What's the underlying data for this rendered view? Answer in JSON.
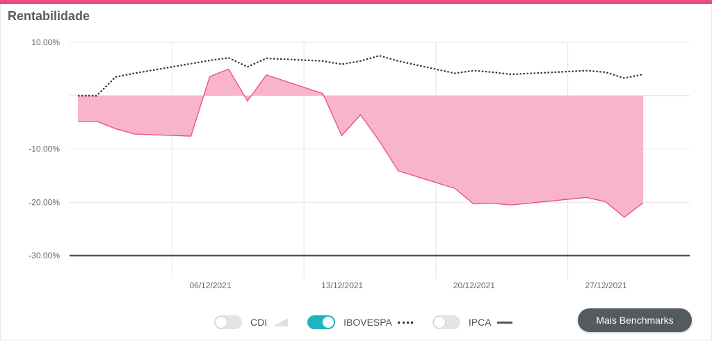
{
  "title": "Rentabilidade",
  "colors": {
    "accent": "#ea4c84",
    "area": "#f8b4cb",
    "toggle_on": "#1fb4c2",
    "benchmark": "#333333"
  },
  "legend": [
    {
      "label": "CDI",
      "on": false,
      "swatch": "area"
    },
    {
      "label": "IBOVESPA",
      "on": true,
      "swatch": "dotted-line"
    },
    {
      "label": "IPCA",
      "on": false,
      "swatch": "solid-line"
    }
  ],
  "more_button": "Mais Benchmarks",
  "chart_data": {
    "type": "area",
    "ylim": [
      -30,
      10
    ],
    "y_ticks": [
      "10.00%",
      "",
      "-10.00%",
      "-20.00%",
      "-30.00%"
    ],
    "y_tick_values": [
      10,
      0,
      -10,
      -20,
      -30
    ],
    "x_ticks": [
      "06/12/2021",
      "13/12/2021",
      "20/12/2021",
      "27/12/2021"
    ],
    "x_tick_days": [
      6,
      13,
      20,
      27
    ],
    "grid": true,
    "series": [
      {
        "style": "area",
        "x": [
          "2021-12-01",
          "2021-12-02",
          "2021-12-03",
          "2021-12-04",
          "2021-12-07",
          "2021-12-08",
          "2021-12-09",
          "2021-12-10",
          "2021-12-11",
          "2021-12-14",
          "2021-12-15",
          "2021-12-16",
          "2021-12-17",
          "2021-12-18",
          "2021-12-21",
          "2021-12-22",
          "2021-12-23",
          "2021-12-24",
          "2021-12-28",
          "2021-12-29",
          "2021-12-30",
          "2021-12-31"
        ],
        "values": [
          -4.8,
          -4.8,
          -6.2,
          -7.2,
          -7.6,
          3.6,
          5.0,
          -1.0,
          3.9,
          0.4,
          -7.5,
          -3.6,
          -8.5,
          -14.1,
          -17.4,
          -20.3,
          -20.2,
          -20.5,
          -19.1,
          -19.9,
          -22.8,
          -20.1
        ]
      },
      {
        "name": "IBOVESPA",
        "style": "dotted",
        "x": [
          "2021-12-01",
          "2021-12-02",
          "2021-12-03",
          "2021-12-04",
          "2021-12-07",
          "2021-12-08",
          "2021-12-09",
          "2021-12-10",
          "2021-12-11",
          "2021-12-14",
          "2021-12-15",
          "2021-12-16",
          "2021-12-17",
          "2021-12-18",
          "2021-12-21",
          "2021-12-22",
          "2021-12-23",
          "2021-12-24",
          "2021-12-28",
          "2021-12-29",
          "2021-12-30",
          "2021-12-31"
        ],
        "values": [
          0.0,
          0.0,
          3.5,
          4.2,
          6.0,
          6.6,
          7.1,
          5.4,
          7.0,
          6.5,
          5.9,
          6.5,
          7.5,
          6.5,
          4.2,
          4.7,
          4.4,
          4.0,
          4.7,
          4.4,
          3.3,
          4.0
        ]
      },
      {
        "name": "IPCA",
        "style": "solid",
        "x": [
          "2021-12-01",
          "2021-12-31"
        ],
        "values": [
          -30.0,
          -30.0
        ]
      }
    ]
  }
}
